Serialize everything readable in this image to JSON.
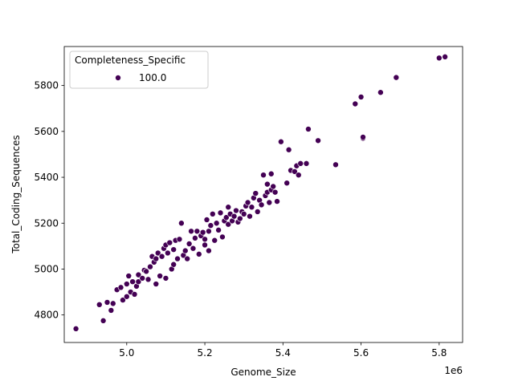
{
  "chart_data": {
    "type": "scatter",
    "xlabel": "Genome_Size",
    "ylabel": "Total_Coding_Sequences",
    "x_offset_label": "1e6",
    "x_scale": 1000000,
    "xlim": [
      4.84,
      5.86
    ],
    "ylim": [
      4680,
      5970
    ],
    "xticks": [
      5.0,
      5.2,
      5.4,
      5.6,
      5.8
    ],
    "xtick_labels": [
      "5.0",
      "5.2",
      "5.4",
      "5.6",
      "5.8"
    ],
    "yticks": [
      4800,
      5000,
      5200,
      5400,
      5600,
      5800
    ],
    "ytick_labels": [
      "4800",
      "5000",
      "5200",
      "5400",
      "5600",
      "5800"
    ],
    "grid": false,
    "legend": {
      "title": "Completeness_Specific",
      "placement": "top-left",
      "entries": [
        {
          "label": "100.0",
          "color": "#440154"
        }
      ]
    },
    "marker_color": "#440154",
    "series": [
      {
        "name": "100.0",
        "points": [
          [
            4.87,
            4740
          ],
          [
            4.93,
            4845
          ],
          [
            4.94,
            4775
          ],
          [
            4.95,
            4855
          ],
          [
            4.96,
            4820
          ],
          [
            4.965,
            4850
          ],
          [
            4.975,
            4910
          ],
          [
            4.985,
            4920
          ],
          [
            4.99,
            4865
          ],
          [
            5.0,
            4880
          ],
          [
            5.0,
            4935
          ],
          [
            5.005,
            4970
          ],
          [
            5.01,
            4900
          ],
          [
            5.015,
            4945
          ],
          [
            5.02,
            4890
          ],
          [
            5.025,
            4925
          ],
          [
            5.03,
            4945
          ],
          [
            5.03,
            4975
          ],
          [
            5.04,
            4960
          ],
          [
            5.045,
            4995
          ],
          [
            5.05,
            4990
          ],
          [
            5.055,
            4955
          ],
          [
            5.06,
            5010
          ],
          [
            5.065,
            5055
          ],
          [
            5.07,
            5030
          ],
          [
            5.075,
            5045
          ],
          [
            5.075,
            4935
          ],
          [
            5.08,
            5070
          ],
          [
            5.085,
            4970
          ],
          [
            5.09,
            5055
          ],
          [
            5.095,
            5090
          ],
          [
            5.1,
            5105
          ],
          [
            5.1,
            4960
          ],
          [
            5.105,
            5070
          ],
          [
            5.11,
            5115
          ],
          [
            5.115,
            5000
          ],
          [
            5.12,
            5085
          ],
          [
            5.12,
            5020
          ],
          [
            5.125,
            5125
          ],
          [
            5.13,
            5045
          ],
          [
            5.135,
            5130
          ],
          [
            5.14,
            5200
          ],
          [
            5.145,
            5060
          ],
          [
            5.15,
            5080
          ],
          [
            5.155,
            5045
          ],
          [
            5.16,
            5110
          ],
          [
            5.165,
            5165
          ],
          [
            5.17,
            5090
          ],
          [
            5.175,
            5135
          ],
          [
            5.18,
            5165
          ],
          [
            5.185,
            5065
          ],
          [
            5.19,
            5145
          ],
          [
            5.195,
            5160
          ],
          [
            5.2,
            5105
          ],
          [
            5.2,
            5130
          ],
          [
            5.205,
            5215
          ],
          [
            5.21,
            5080
          ],
          [
            5.21,
            5165
          ],
          [
            5.215,
            5190
          ],
          [
            5.22,
            5240
          ],
          [
            5.225,
            5125
          ],
          [
            5.23,
            5200
          ],
          [
            5.235,
            5170
          ],
          [
            5.24,
            5245
          ],
          [
            5.245,
            5140
          ],
          [
            5.25,
            5210
          ],
          [
            5.255,
            5225
          ],
          [
            5.26,
            5270
          ],
          [
            5.26,
            5195
          ],
          [
            5.265,
            5240
          ],
          [
            5.27,
            5210
          ],
          [
            5.275,
            5230
          ],
          [
            5.28,
            5255
          ],
          [
            5.285,
            5205
          ],
          [
            5.29,
            5220
          ],
          [
            5.295,
            5250
          ],
          [
            5.3,
            5240
          ],
          [
            5.305,
            5275
          ],
          [
            5.31,
            5290
          ],
          [
            5.315,
            5230
          ],
          [
            5.32,
            5270
          ],
          [
            5.325,
            5310
          ],
          [
            5.33,
            5330
          ],
          [
            5.335,
            5250
          ],
          [
            5.34,
            5300
          ],
          [
            5.345,
            5280
          ],
          [
            5.35,
            5410
          ],
          [
            5.355,
            5320
          ],
          [
            5.36,
            5370
          ],
          [
            5.36,
            5335
          ],
          [
            5.365,
            5290
          ],
          [
            5.37,
            5415
          ],
          [
            5.37,
            5345
          ],
          [
            5.375,
            5360
          ],
          [
            5.38,
            5335
          ],
          [
            5.385,
            5295
          ],
          [
            5.395,
            5555
          ],
          [
            5.41,
            5375
          ],
          [
            5.415,
            5520
          ],
          [
            5.42,
            5430
          ],
          [
            5.43,
            5425
          ],
          [
            5.435,
            5450
          ],
          [
            5.44,
            5410
          ],
          [
            5.445,
            5460
          ],
          [
            5.46,
            5460
          ],
          [
            5.465,
            5610
          ],
          [
            5.49,
            5560
          ],
          [
            5.535,
            5455
          ],
          [
            5.585,
            5720
          ],
          [
            5.6,
            5750
          ],
          [
            5.605,
            5570
          ],
          [
            5.605,
            5575
          ],
          [
            5.65,
            5770
          ],
          [
            5.69,
            5835
          ],
          [
            5.8,
            5920
          ],
          [
            5.815,
            5925
          ]
        ]
      }
    ]
  }
}
